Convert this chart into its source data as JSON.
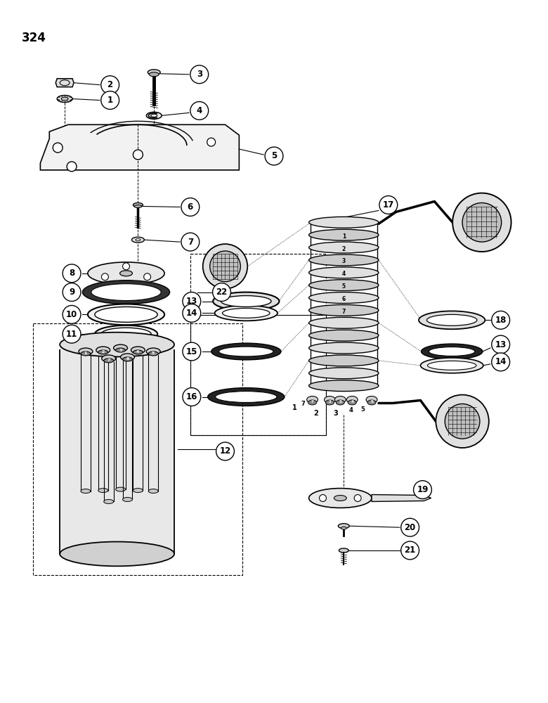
{
  "page_number": "324",
  "bg": "#ffffff",
  "lc": "#000000"
}
